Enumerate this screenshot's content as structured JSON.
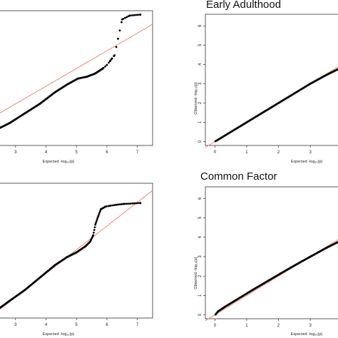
{
  "colors": {
    "points": "#000000",
    "reference_line": "#f08a78",
    "frame": "#333333"
  },
  "chart_data": [
    {
      "type": "scatter",
      "panel": "top-left",
      "title": "",
      "xlabel": "Expected  -log₁₀(p)",
      "ylabel": "",
      "xticks": [
        3,
        4,
        5,
        6,
        7
      ],
      "yticks": [],
      "xlim": [
        2.35,
        7.5
      ],
      "ylim": [
        0.6,
        7.55
      ],
      "reference_line": {
        "x": [
          2.35,
          7.5
        ],
        "y": [
          2.15,
          6.85
        ]
      },
      "grid": false,
      "series": [
        {
          "x": [
            2.35,
            2.8,
            3.3,
            3.8,
            4.3,
            4.7,
            5.05,
            5.35,
            5.6,
            5.85,
            6.0,
            6.1,
            6.15,
            6.25,
            6.5,
            6.75,
            7.1
          ],
          "y": [
            1.4,
            1.75,
            2.25,
            2.75,
            3.35,
            3.75,
            4.05,
            4.15,
            4.3,
            4.55,
            4.75,
            4.95,
            5.05,
            5.25,
            7.1,
            7.3,
            7.35
          ]
        }
      ]
    },
    {
      "type": "scatter",
      "panel": "top-right",
      "title": "Early Adulthood",
      "xlabel": "Expected  -log₁₀(p)",
      "ylabel": "Observed  -log₁₀(p)",
      "xticks": [
        0,
        1,
        2,
        3
      ],
      "yticks": [
        0,
        1,
        2,
        3,
        4,
        5,
        6
      ],
      "xlim": [
        -0.3,
        4.05
      ],
      "ylim": [
        -0.2,
        6.6
      ],
      "reference_line": {
        "x": [
          -0.3,
          4.05
        ],
        "y": [
          -0.3,
          4.05
        ]
      },
      "grid": false,
      "series": [
        {
          "x": [
            0.02,
            0.6,
            1.2,
            1.8,
            2.4,
            3.0,
            3.5,
            4.05
          ],
          "y": [
            0.02,
            0.6,
            1.2,
            1.8,
            2.4,
            3.0,
            3.45,
            3.9
          ]
        }
      ]
    },
    {
      "type": "scatter",
      "panel": "bottom-left",
      "title": "",
      "xlabel": "Expected  -log₁₀(p)",
      "ylabel": "",
      "xticks": [
        3,
        4,
        5,
        6,
        7
      ],
      "yticks": [],
      "xlim": [
        2.35,
        7.5
      ],
      "ylim": [
        1.0,
        8.5
      ],
      "reference_line": {
        "x": [
          2.35,
          7.5
        ],
        "y": [
          1.3,
          8.1
        ]
      },
      "grid": false,
      "series": [
        {
          "x": [
            2.35,
            2.8,
            3.3,
            3.8,
            4.3,
            4.7,
            5.0,
            5.3,
            5.45,
            5.55,
            5.62,
            5.7,
            5.8,
            5.95,
            6.1,
            6.3,
            6.55,
            7.1
          ],
          "y": [
            1.4,
            1.95,
            2.55,
            3.25,
            3.95,
            4.4,
            4.65,
            5.0,
            5.25,
            5.6,
            6.2,
            6.6,
            7.05,
            7.2,
            7.25,
            7.3,
            7.35,
            7.4
          ]
        }
      ]
    },
    {
      "type": "scatter",
      "panel": "bottom-right",
      "title": "Common Factor",
      "xlabel": "Expected  -log₁₀(p)",
      "ylabel": "Observed  -log₁₀(p)",
      "xticks": [
        0,
        1,
        2,
        3
      ],
      "yticks": [
        0,
        1,
        2,
        3,
        4,
        5,
        6
      ],
      "xlim": [
        -0.3,
        4.05
      ],
      "ylim": [
        -0.2,
        6.6
      ],
      "reference_line": {
        "x": [
          -0.3,
          4.05
        ],
        "y": [
          -0.3,
          4.05
        ]
      },
      "grid": false,
      "series": [
        {
          "x": [
            0.02,
            0.1,
            0.3,
            0.6,
            1.2,
            1.8,
            2.4,
            3.0,
            3.5,
            4.05
          ],
          "y": [
            0.02,
            0.18,
            0.4,
            0.7,
            1.3,
            1.88,
            2.45,
            3.0,
            3.45,
            3.9
          ]
        }
      ]
    }
  ]
}
